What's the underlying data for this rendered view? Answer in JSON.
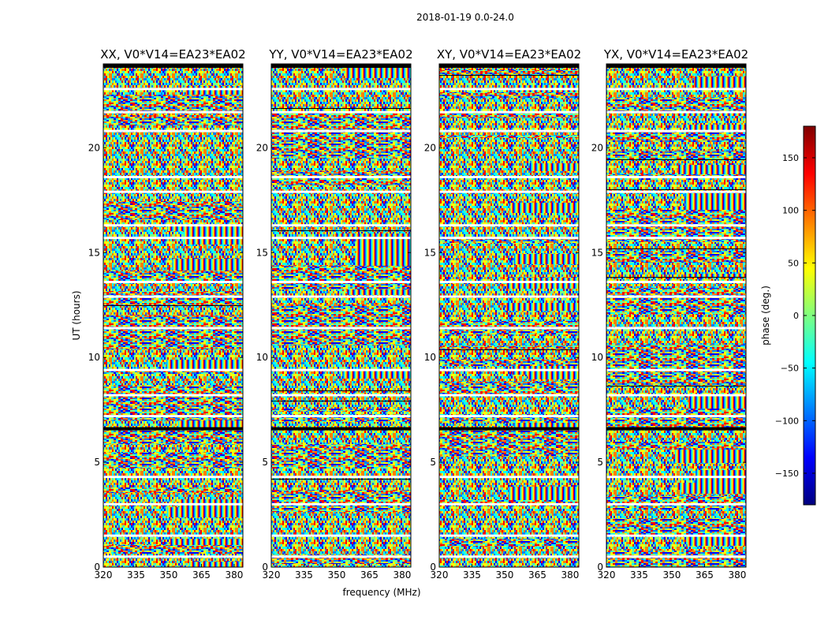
{
  "chart_data": {
    "type": "heatmap",
    "suptitle": "2018-01-19 0.0-24.0",
    "xlabel": "frequency (MHz)",
    "ylabel": "UT (hours)",
    "xlim": [
      320,
      384
    ],
    "ylim": [
      0,
      24
    ],
    "xticks": [
      320,
      335,
      350,
      365,
      380
    ],
    "yticks": [
      0,
      5,
      10,
      15,
      20
    ],
    "panels": [
      {
        "title": "XX, V0*V14=EA23*EA02"
      },
      {
        "title": "YY, V0*V14=EA23*EA02"
      },
      {
        "title": "XY, V0*V14=EA23*EA02"
      },
      {
        "title": "YX, V0*V14=EA23*EA02"
      }
    ],
    "colorbar": {
      "label": "phase (deg.)",
      "range": [
        -180,
        180
      ],
      "ticks": [
        150,
        100,
        50,
        0,
        -50,
        -100,
        -150
      ],
      "tick_labels": [
        "150",
        "100",
        "50",
        "0",
        "−50",
        "−100",
        "−150"
      ],
      "colormap": [
        "#00007f",
        "#0000ff",
        "#007fff",
        "#00ffff",
        "#7fff7f",
        "#ffff00",
        "#ff7f00",
        "#ff0000",
        "#7f0000"
      ]
    },
    "flagged_ut_hours": [
      0.5,
      1.5,
      3.0,
      4.3,
      6.6,
      7.2,
      8.2,
      9.4,
      11.4,
      12.9,
      13.6,
      15.7,
      16.3,
      17.9,
      18.6,
      20.8,
      21.7,
      22.8
    ]
  }
}
